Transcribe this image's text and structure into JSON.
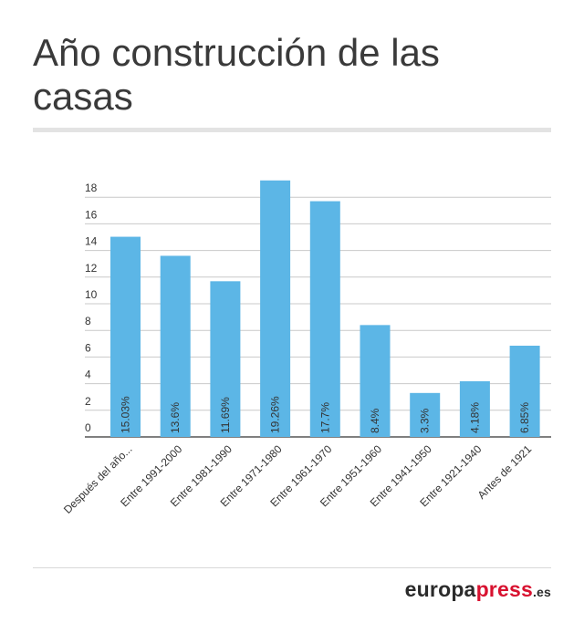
{
  "header": {
    "title": "Año construcción de las casas"
  },
  "footer": {
    "logo_part1": "europa",
    "logo_part2": "press",
    "logo_part3": ".es"
  },
  "colors": {
    "bar": "#5cb6e6",
    "grid": "#c9c9c9",
    "brand_red": "#d8112f"
  },
  "chart_data": {
    "type": "bar",
    "title": "Año construcción de las casas",
    "xlabel": "",
    "ylabel": "",
    "categories": [
      "Después del año...",
      "Entre 1991-2000",
      "Entre 1981-1990",
      "Entre 1971-1980",
      "Entre 1961-1970",
      "Entre 1951-1960",
      "Entre 1941-1950",
      "Entre 1921-1940",
      "Antes de 1921"
    ],
    "values": [
      15.03,
      13.6,
      11.69,
      19.26,
      17.7,
      8.4,
      3.3,
      4.18,
      6.85
    ],
    "value_labels": [
      "15.03%",
      "13.6%",
      "11.69%",
      "19.26%",
      "17.7%",
      "8.4%",
      "3.3%",
      "4.18%",
      "6.85%"
    ],
    "yticks": [
      0,
      2,
      4,
      6,
      8,
      10,
      12,
      14,
      16,
      18
    ],
    "ylim": [
      0,
      18
    ],
    "grid": true
  }
}
